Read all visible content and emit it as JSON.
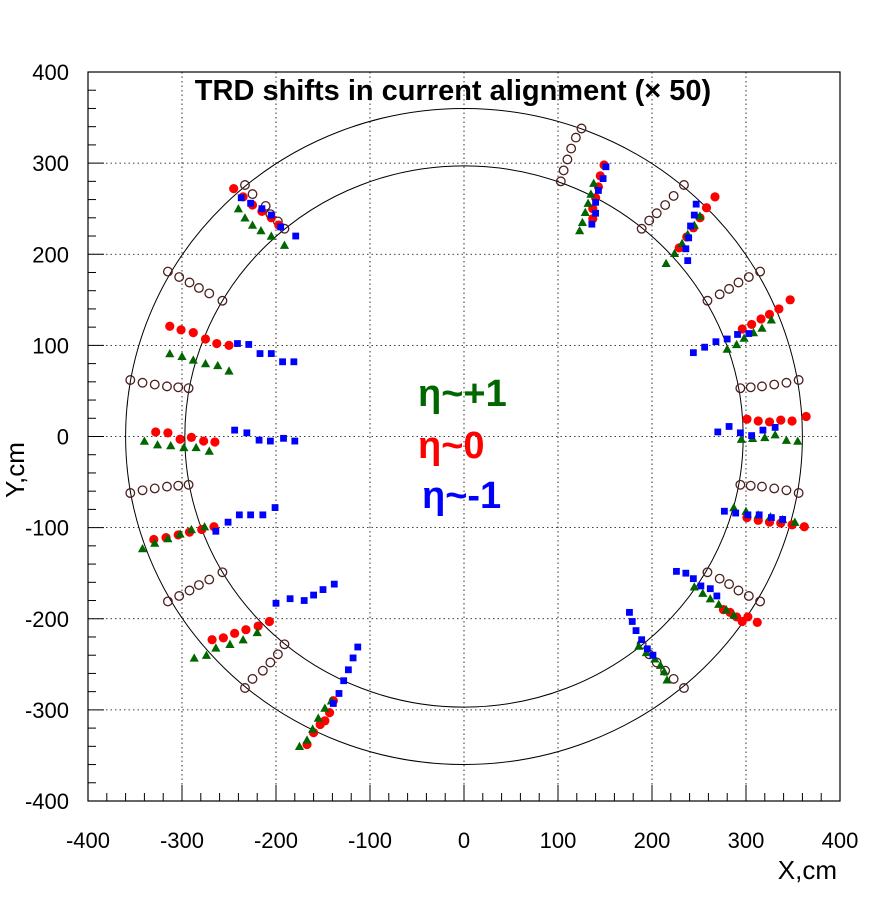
{
  "chart_data": {
    "type": "scatter",
    "title": "TRD shifts in current alignment (× 50)",
    "xlabel": "X,cm",
    "ylabel": "Y,cm",
    "xlim": [
      -400,
      400
    ],
    "ylim": [
      -400,
      400
    ],
    "xticks": [
      -400,
      -300,
      -200,
      -100,
      0,
      100,
      200,
      300,
      400
    ],
    "yticks": [
      -400,
      -300,
      -200,
      -100,
      0,
      100,
      200,
      300,
      400
    ],
    "xtick_labels": [
      "-400",
      "-300",
      "-200",
      "-100",
      "0",
      "100",
      "200",
      "300",
      "400"
    ],
    "ytick_labels": [
      "-400",
      "-300",
      "-200",
      "-100",
      "0",
      "100",
      "200",
      "300",
      "400"
    ],
    "grid": true,
    "reference_circles": [
      {
        "radius": 297
      },
      {
        "radius": 360
      }
    ],
    "legend": {
      "placement": "center",
      "entries": [
        {
          "text": "η~+1",
          "color": "#006600"
        },
        {
          "text": "η~0",
          "color": "#ff0000"
        },
        {
          "text": "η~-1",
          "color": "#0000ff"
        }
      ]
    },
    "series": [
      {
        "marker": "open-circle",
        "color": "#4d1f1f",
        "points": [
          [
            -355,
            62
          ],
          [
            -342,
            59
          ],
          [
            -329,
            57
          ],
          [
            -316,
            55
          ],
          [
            -304,
            54
          ],
          [
            -293,
            53
          ],
          [
            -355,
            -62
          ],
          [
            -342,
            -59
          ],
          [
            -329,
            -57
          ],
          [
            -316,
            -55
          ],
          [
            -304,
            -54
          ],
          [
            -293,
            -53
          ],
          [
            -315,
            181
          ],
          [
            -303,
            175
          ],
          [
            -292,
            169
          ],
          [
            -282,
            163
          ],
          [
            -271,
            157
          ],
          [
            -257,
            149
          ],
          [
            -315,
            -181
          ],
          [
            -303,
            -175
          ],
          [
            -292,
            -169
          ],
          [
            -282,
            -163
          ],
          [
            -271,
            -157
          ],
          [
            -257,
            -149
          ],
          [
            -233,
            276
          ],
          [
            -225,
            266
          ],
          [
            -211,
            253
          ],
          [
            -206,
            244
          ],
          [
            -198,
            236
          ],
          [
            -191,
            228
          ],
          [
            -233,
            -276
          ],
          [
            -225,
            -266
          ],
          [
            -214,
            -257
          ],
          [
            -206,
            -248
          ],
          [
            -198,
            -239
          ],
          [
            -191,
            -228
          ],
          [
            125,
            338
          ],
          [
            119,
            328
          ],
          [
            114,
            316
          ],
          [
            110,
            304
          ],
          [
            106,
            292
          ],
          [
            103,
            280
          ],
          [
            234,
            276
          ],
          [
            223,
            264
          ],
          [
            214,
            254
          ],
          [
            205,
            245
          ],
          [
            197,
            237
          ],
          [
            189,
            228
          ],
          [
            234,
            -276
          ],
          [
            223,
            -266
          ],
          [
            214,
            -257
          ],
          [
            205,
            -248
          ],
          [
            197,
            -239
          ],
          [
            189,
            -228
          ],
          [
            315,
            181
          ],
          [
            303,
            175
          ],
          [
            292,
            169
          ],
          [
            282,
            162
          ],
          [
            272,
            156
          ],
          [
            259,
            149
          ],
          [
            315,
            -181
          ],
          [
            303,
            -175
          ],
          [
            292,
            -169
          ],
          [
            282,
            -162
          ],
          [
            272,
            -156
          ],
          [
            259,
            -149
          ],
          [
            356,
            62
          ],
          [
            343,
            59
          ],
          [
            330,
            57
          ],
          [
            317,
            55
          ],
          [
            305,
            54
          ],
          [
            294,
            53
          ],
          [
            356,
            -62
          ],
          [
            343,
            -59
          ],
          [
            330,
            -57
          ],
          [
            317,
            -55
          ],
          [
            305,
            -54
          ],
          [
            294,
            -53
          ]
        ]
      },
      {
        "marker": "filled-circle",
        "color": "#ff0000",
        "points": [
          [
            -245,
            272
          ],
          [
            -235,
            263
          ],
          [
            -225,
            254
          ],
          [
            -215,
            247
          ],
          [
            -205,
            240
          ],
          [
            -197,
            232
          ],
          [
            -313,
            121
          ],
          [
            -301,
            117
          ],
          [
            -288,
            114
          ],
          [
            -275,
            107
          ],
          [
            -263,
            102
          ],
          [
            -250,
            100
          ],
          [
            -328,
            5
          ],
          [
            -315,
            4
          ],
          [
            -302,
            -3
          ],
          [
            -290,
            -1
          ],
          [
            -277,
            -5
          ],
          [
            -265,
            -6
          ],
          [
            -330,
            -113
          ],
          [
            -317,
            -111
          ],
          [
            -304,
            -108
          ],
          [
            -292,
            -105
          ],
          [
            -279,
            -102
          ],
          [
            -266,
            -99
          ],
          [
            -268,
            -223
          ],
          [
            -256,
            -221
          ],
          [
            -244,
            -216
          ],
          [
            -232,
            -212
          ],
          [
            -219,
            -208
          ],
          [
            -207,
            -203
          ],
          [
            -167,
            -338
          ],
          [
            -160,
            -325
          ],
          [
            -153,
            -316
          ],
          [
            -148,
            -312
          ],
          [
            -143,
            -303
          ],
          [
            -139,
            -290
          ],
          [
            137,
            239
          ],
          [
            137,
            250
          ],
          [
            140,
            262
          ],
          [
            143,
            274
          ],
          [
            145,
            286
          ],
          [
            149,
            298
          ],
          [
            229,
            207
          ],
          [
            237,
            219
          ],
          [
            244,
            229
          ],
          [
            251,
            240
          ],
          [
            258,
            251
          ],
          [
            267,
            263
          ],
          [
            276,
            -190
          ],
          [
            283,
            -193
          ],
          [
            290,
            -198
          ],
          [
            296,
            -203
          ],
          [
            302,
            -198
          ],
          [
            312,
            -204
          ],
          [
            301,
            -89
          ],
          [
            313,
            -92
          ],
          [
            325,
            -94
          ],
          [
            337,
            -95
          ],
          [
            349,
            -97
          ],
          [
            362,
            -99
          ],
          [
            301,
            19
          ],
          [
            313,
            17
          ],
          [
            325,
            16
          ],
          [
            337,
            18
          ],
          [
            349,
            17
          ],
          [
            364,
            22
          ],
          [
            296,
            118
          ],
          [
            306,
            123
          ],
          [
            316,
            129
          ],
          [
            325,
            134
          ],
          [
            335,
            140
          ],
          [
            347,
            150
          ]
        ]
      },
      {
        "marker": "triangle",
        "color": "#006600",
        "points": [
          [
            -240,
            250
          ],
          [
            -233,
            240
          ],
          [
            -225,
            232
          ],
          [
            -216,
            226
          ],
          [
            -205,
            220
          ],
          [
            -191,
            210
          ],
          [
            -313,
            91
          ],
          [
            -300,
            88
          ],
          [
            -288,
            84
          ],
          [
            -275,
            80
          ],
          [
            -262,
            78
          ],
          [
            -250,
            72
          ],
          [
            -340,
            -5
          ],
          [
            -326,
            -9
          ],
          [
            -312,
            -10
          ],
          [
            -298,
            -12
          ],
          [
            -285,
            -12
          ],
          [
            -271,
            -16
          ],
          [
            -342,
            -123
          ],
          [
            -329,
            -117
          ],
          [
            -315,
            -112
          ],
          [
            -302,
            -107
          ],
          [
            -290,
            -102
          ],
          [
            -276,
            -99
          ],
          [
            -287,
            -243
          ],
          [
            -274,
            -240
          ],
          [
            -264,
            -232
          ],
          [
            -249,
            -228
          ],
          [
            -235,
            -223
          ],
          [
            -220,
            -215
          ],
          [
            -175,
            -340
          ],
          [
            -167,
            -333
          ],
          [
            -161,
            -321
          ],
          [
            -155,
            -309
          ],
          [
            -148,
            -298
          ],
          [
            -141,
            -290
          ],
          [
            123,
            226
          ],
          [
            126,
            235
          ],
          [
            129,
            246
          ],
          [
            132,
            256
          ],
          [
            135,
            266
          ],
          [
            138,
            278
          ],
          [
            215,
            190
          ],
          [
            224,
            201
          ],
          [
            232,
            212
          ],
          [
            238,
            222
          ],
          [
            245,
            232
          ],
          [
            251,
            242
          ],
          [
            186,
            -230
          ],
          [
            194,
            -237
          ],
          [
            203,
            -244
          ],
          [
            209,
            -251
          ],
          [
            213,
            -258
          ],
          [
            216,
            -267
          ],
          [
            245,
            -165
          ],
          [
            254,
            -172
          ],
          [
            262,
            -178
          ],
          [
            271,
            -184
          ],
          [
            279,
            -190
          ],
          [
            287,
            -196
          ],
          [
            287,
            -78
          ],
          [
            300,
            -82
          ],
          [
            313,
            -86
          ],
          [
            326,
            -88
          ],
          [
            339,
            -91
          ],
          [
            352,
            -94
          ],
          [
            295,
            -3
          ],
          [
            307,
            -2
          ],
          [
            320,
            -1
          ],
          [
            331,
            2
          ],
          [
            343,
            -4
          ],
          [
            355,
            -5
          ],
          [
            280,
            96
          ],
          [
            290,
            101
          ],
          [
            298,
            108
          ],
          [
            308,
            114
          ],
          [
            317,
            119
          ],
          [
            327,
            128
          ]
        ]
      },
      {
        "marker": "square",
        "color": "#0000ff",
        "points": [
          [
            -237,
            262
          ],
          [
            -227,
            256
          ],
          [
            -215,
            250
          ],
          [
            -205,
            243
          ],
          [
            -195,
            230
          ],
          [
            -179,
            220
          ],
          [
            -241,
            102
          ],
          [
            -229,
            101
          ],
          [
            -217,
            91
          ],
          [
            -205,
            91
          ],
          [
            -193,
            82
          ],
          [
            -181,
            82
          ],
          [
            -244,
            7
          ],
          [
            -231,
            4
          ],
          [
            -218,
            -4
          ],
          [
            -206,
            -5
          ],
          [
            -192,
            -2
          ],
          [
            -180,
            -5
          ],
          [
            -264,
            -104
          ],
          [
            -251,
            -94
          ],
          [
            -239,
            -86
          ],
          [
            -227,
            -86
          ],
          [
            -214,
            -86
          ],
          [
            -201,
            -78
          ],
          [
            -200,
            -183
          ],
          [
            -185,
            -178
          ],
          [
            -170,
            -180
          ],
          [
            -160,
            -174
          ],
          [
            -150,
            -168
          ],
          [
            -138,
            -162
          ],
          [
            -139,
            -293
          ],
          [
            -133,
            -282
          ],
          [
            -128,
            -268
          ],
          [
            -123,
            -256
          ],
          [
            -118,
            -243
          ],
          [
            -113,
            -231
          ],
          [
            136,
            233
          ],
          [
            140,
            245
          ],
          [
            140,
            257
          ],
          [
            143,
            270
          ],
          [
            148,
            283
          ],
          [
            151,
            296
          ],
          [
            238,
            193
          ],
          [
            236,
            206
          ],
          [
            239,
            218
          ],
          [
            241,
            231
          ],
          [
            245,
            243
          ],
          [
            247,
            255
          ],
          [
            176,
            -193
          ],
          [
            179,
            -203
          ],
          [
            183,
            -213
          ],
          [
            189,
            -223
          ],
          [
            195,
            -233
          ],
          [
            201,
            -240
          ],
          [
            226,
            -148
          ],
          [
            236,
            -150
          ],
          [
            244,
            -156
          ],
          [
            252,
            -164
          ],
          [
            262,
            -167
          ],
          [
            269,
            -175
          ],
          [
            277,
            -82
          ],
          [
            289,
            -84
          ],
          [
            302,
            -86
          ],
          [
            314,
            -86
          ],
          [
            327,
            -89
          ],
          [
            339,
            -91
          ],
          [
            270,
            5
          ],
          [
            282,
            11
          ],
          [
            294,
            4
          ],
          [
            306,
            1
          ],
          [
            318,
            7
          ],
          [
            331,
            10
          ],
          [
            244,
            92
          ],
          [
            256,
            98
          ],
          [
            268,
            104
          ],
          [
            280,
            107
          ],
          [
            291,
            112
          ],
          [
            303,
            113
          ]
        ]
      }
    ]
  }
}
